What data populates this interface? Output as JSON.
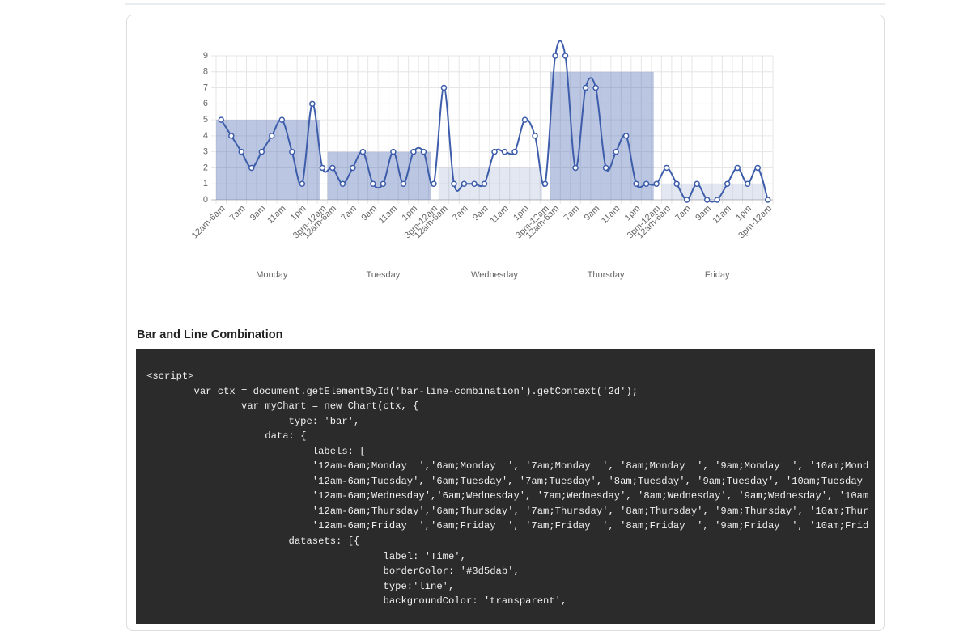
{
  "chart": {
    "type": "bar-line",
    "categories": [
      "12am-6am",
      null,
      "7am",
      null,
      "9am",
      null,
      "11am",
      null,
      "1pm",
      null,
      "3pm-12am",
      "12am-6am",
      null,
      "7am",
      null,
      "9am",
      null,
      "11am",
      null,
      "1pm",
      null,
      "3pm-12am",
      "12am-6am",
      null,
      "7am",
      null,
      "9am",
      null,
      "11am",
      null,
      "1pm",
      null,
      "3pm-12am",
      "12am-6am",
      null,
      "7am",
      null,
      "9am",
      null,
      "11am",
      null,
      "1pm",
      null,
      "3pm-12am",
      "12am-6am",
      null,
      "7am",
      null,
      "9am",
      null,
      "11am",
      null,
      "1pm",
      null,
      "3pm-12am"
    ],
    "groups": [
      "Monday",
      "Tuesday",
      "Wednesday",
      "Thursday",
      "Friday"
    ],
    "bars": {
      "values": [
        5,
        3,
        2,
        8,
        1
      ],
      "colors": [
        "rgba(61,93,171,0.35)",
        "rgba(61,93,171,0.35)",
        "rgba(61,93,171,0.15)",
        "rgba(61,93,171,0.35)",
        "rgba(61,93,171,0.15)"
      ]
    },
    "line": {
      "color": "#3d5dab",
      "values": [
        5,
        4,
        3,
        2,
        3,
        4,
        5,
        3,
        1,
        6,
        2,
        2,
        1,
        2,
        3,
        1,
        1,
        3,
        1,
        3,
        3,
        1,
        7,
        1,
        1,
        1,
        1,
        3,
        3,
        3,
        5,
        4,
        1,
        9,
        9,
        2,
        7,
        7,
        2,
        3,
        4,
        1,
        1,
        1,
        2,
        1,
        0,
        1,
        0,
        0,
        1,
        2,
        1,
        2,
        0
      ]
    },
    "ylim": [
      0,
      9
    ],
    "yticks": [
      0,
      1,
      2,
      3,
      4,
      5,
      6,
      7,
      8,
      9
    ],
    "grid": true
  },
  "section": {
    "title": "Bar and Line Combination"
  },
  "code": {
    "lines": [
      "<script>",
      "        var ctx = document.getElementById('bar-line-combination').getContext('2d');",
      "                var myChart = new Chart(ctx, {",
      "                        type: 'bar',",
      "                    data: {",
      "                            labels: [",
      "                            '12am-6am;Monday  ','6am;Monday  ', '7am;Monday  ', '8am;Monday  ', '9am;Monday  ', '10am;Mond",
      "                            '12am-6am;Tuesday', '6am;Tuesday', '7am;Tuesday', '8am;Tuesday', '9am;Tuesday', '10am;Tuesday",
      "                            '12am-6am;Wednesday','6am;Wednesday', '7am;Wednesday', '8am;Wednesday', '9am;Wednesday', '10am",
      "                            '12am-6am;Thursday','6am;Thursday', '7am;Thursday', '8am;Thursday', '9am;Thursday', '10am;Thur",
      "                            '12am-6am;Friday  ','6am;Friday  ', '7am;Friday  ', '8am;Friday  ', '9am;Friday  ', '10am;Frid",
      "                        datasets: [{",
      "                                        label: 'Time',",
      "                                        borderColor: '#3d5dab',",
      "                                        type:'line',",
      "                                        backgroundColor: 'transparent',"
    ]
  }
}
